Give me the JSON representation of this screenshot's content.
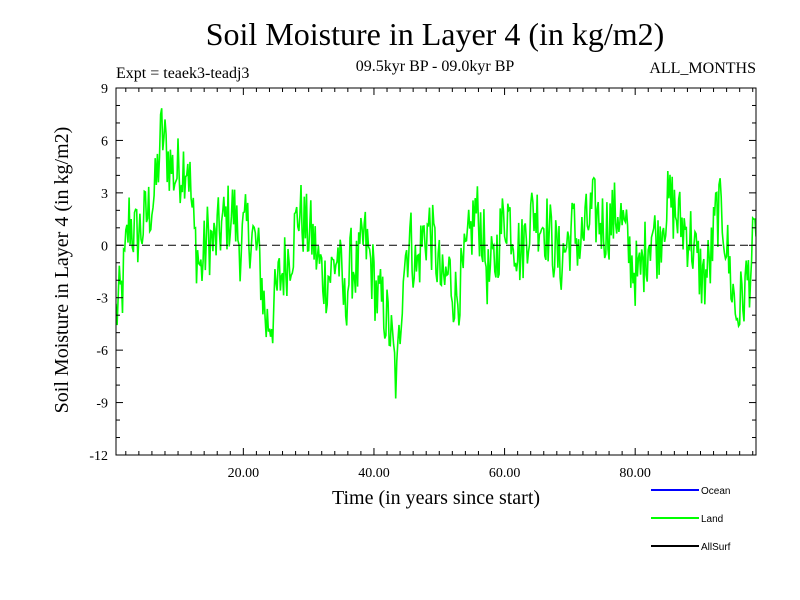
{
  "chart_data": {
    "type": "line",
    "title": "Soil Moisture in Layer 4 (in kg/m2)",
    "subtitle": "09.5kyr BP - 09.0kyr BP",
    "left_note": "Expt = teaek3-teadj3",
    "right_note": "ALL_MONTHS",
    "xlabel": "Time (in years since start)",
    "ylabel": "Soil Moisture in Layer 4 (in kg/m2)",
    "xlim": [
      0.5,
      98.5
    ],
    "ylim": [
      -12,
      9
    ],
    "xticks": [
      20,
      40,
      60,
      80
    ],
    "xtick_labels": [
      "20.00",
      "40.00",
      "60.00",
      "80.00"
    ],
    "yticks": [
      -12,
      -9,
      -6,
      -3,
      0,
      3,
      6,
      9
    ],
    "ytick_labels": [
      "-12",
      "-9",
      "-6",
      "-3",
      "0",
      "3",
      "6",
      "9"
    ],
    "zero_line": 0,
    "series": [
      {
        "name": "Land",
        "color": "#00ff00",
        "x_start": 0.5,
        "x_step": 1,
        "values": [
          -4.0,
          -2.5,
          1.5,
          0.5,
          1.0,
          2.0,
          3.0,
          6.5,
          5.0,
          4.0,
          4.5,
          5.0,
          0.5,
          -1.5,
          0.5,
          0.0,
          1.0,
          1.5,
          2.0,
          0.0,
          1.0,
          0.5,
          -1.0,
          -4.5,
          -4.0,
          -2.0,
          -1.0,
          0.0,
          2.0,
          1.0,
          0.5,
          -1.0,
          -2.0,
          -1.5,
          -0.5,
          -3.5,
          -1.0,
          -1.5,
          0.5,
          -1.0,
          -3.0,
          -3.5,
          -5.0,
          -8.0,
          -1.0,
          0.5,
          -1.5,
          0.5,
          1.0,
          -0.5,
          -2.5,
          -1.5,
          -3.0,
          -2.0,
          0.0,
          2.0,
          1.0,
          -2.0,
          -1.0,
          1.0,
          2.0,
          0.5,
          -0.5,
          1.0,
          2.0,
          1.5,
          1.0,
          0.0,
          -1.0,
          0.0,
          1.0,
          0.0,
          1.0,
          2.0,
          1.5,
          1.0,
          1.5,
          2.0,
          0.5,
          -1.0,
          -2.0,
          -0.5,
          1.0,
          0.0,
          2.0,
          2.5,
          1.5,
          1.0,
          0.5,
          -1.0,
          -2.0,
          -1.0,
          2.0,
          1.5,
          -1.5,
          -4.0,
          -3.0,
          -1.5,
          0.5
        ],
        "noise": [
          0.15,
          -0.05,
          0.1,
          -0.15,
          0.05,
          0.0
        ]
      }
    ],
    "legend": [
      {
        "label": "Ocean",
        "color": "#0000ff"
      },
      {
        "label": "Land",
        "color": "#00ff00"
      },
      {
        "label": "AllSurf",
        "color": "#000000"
      }
    ]
  }
}
